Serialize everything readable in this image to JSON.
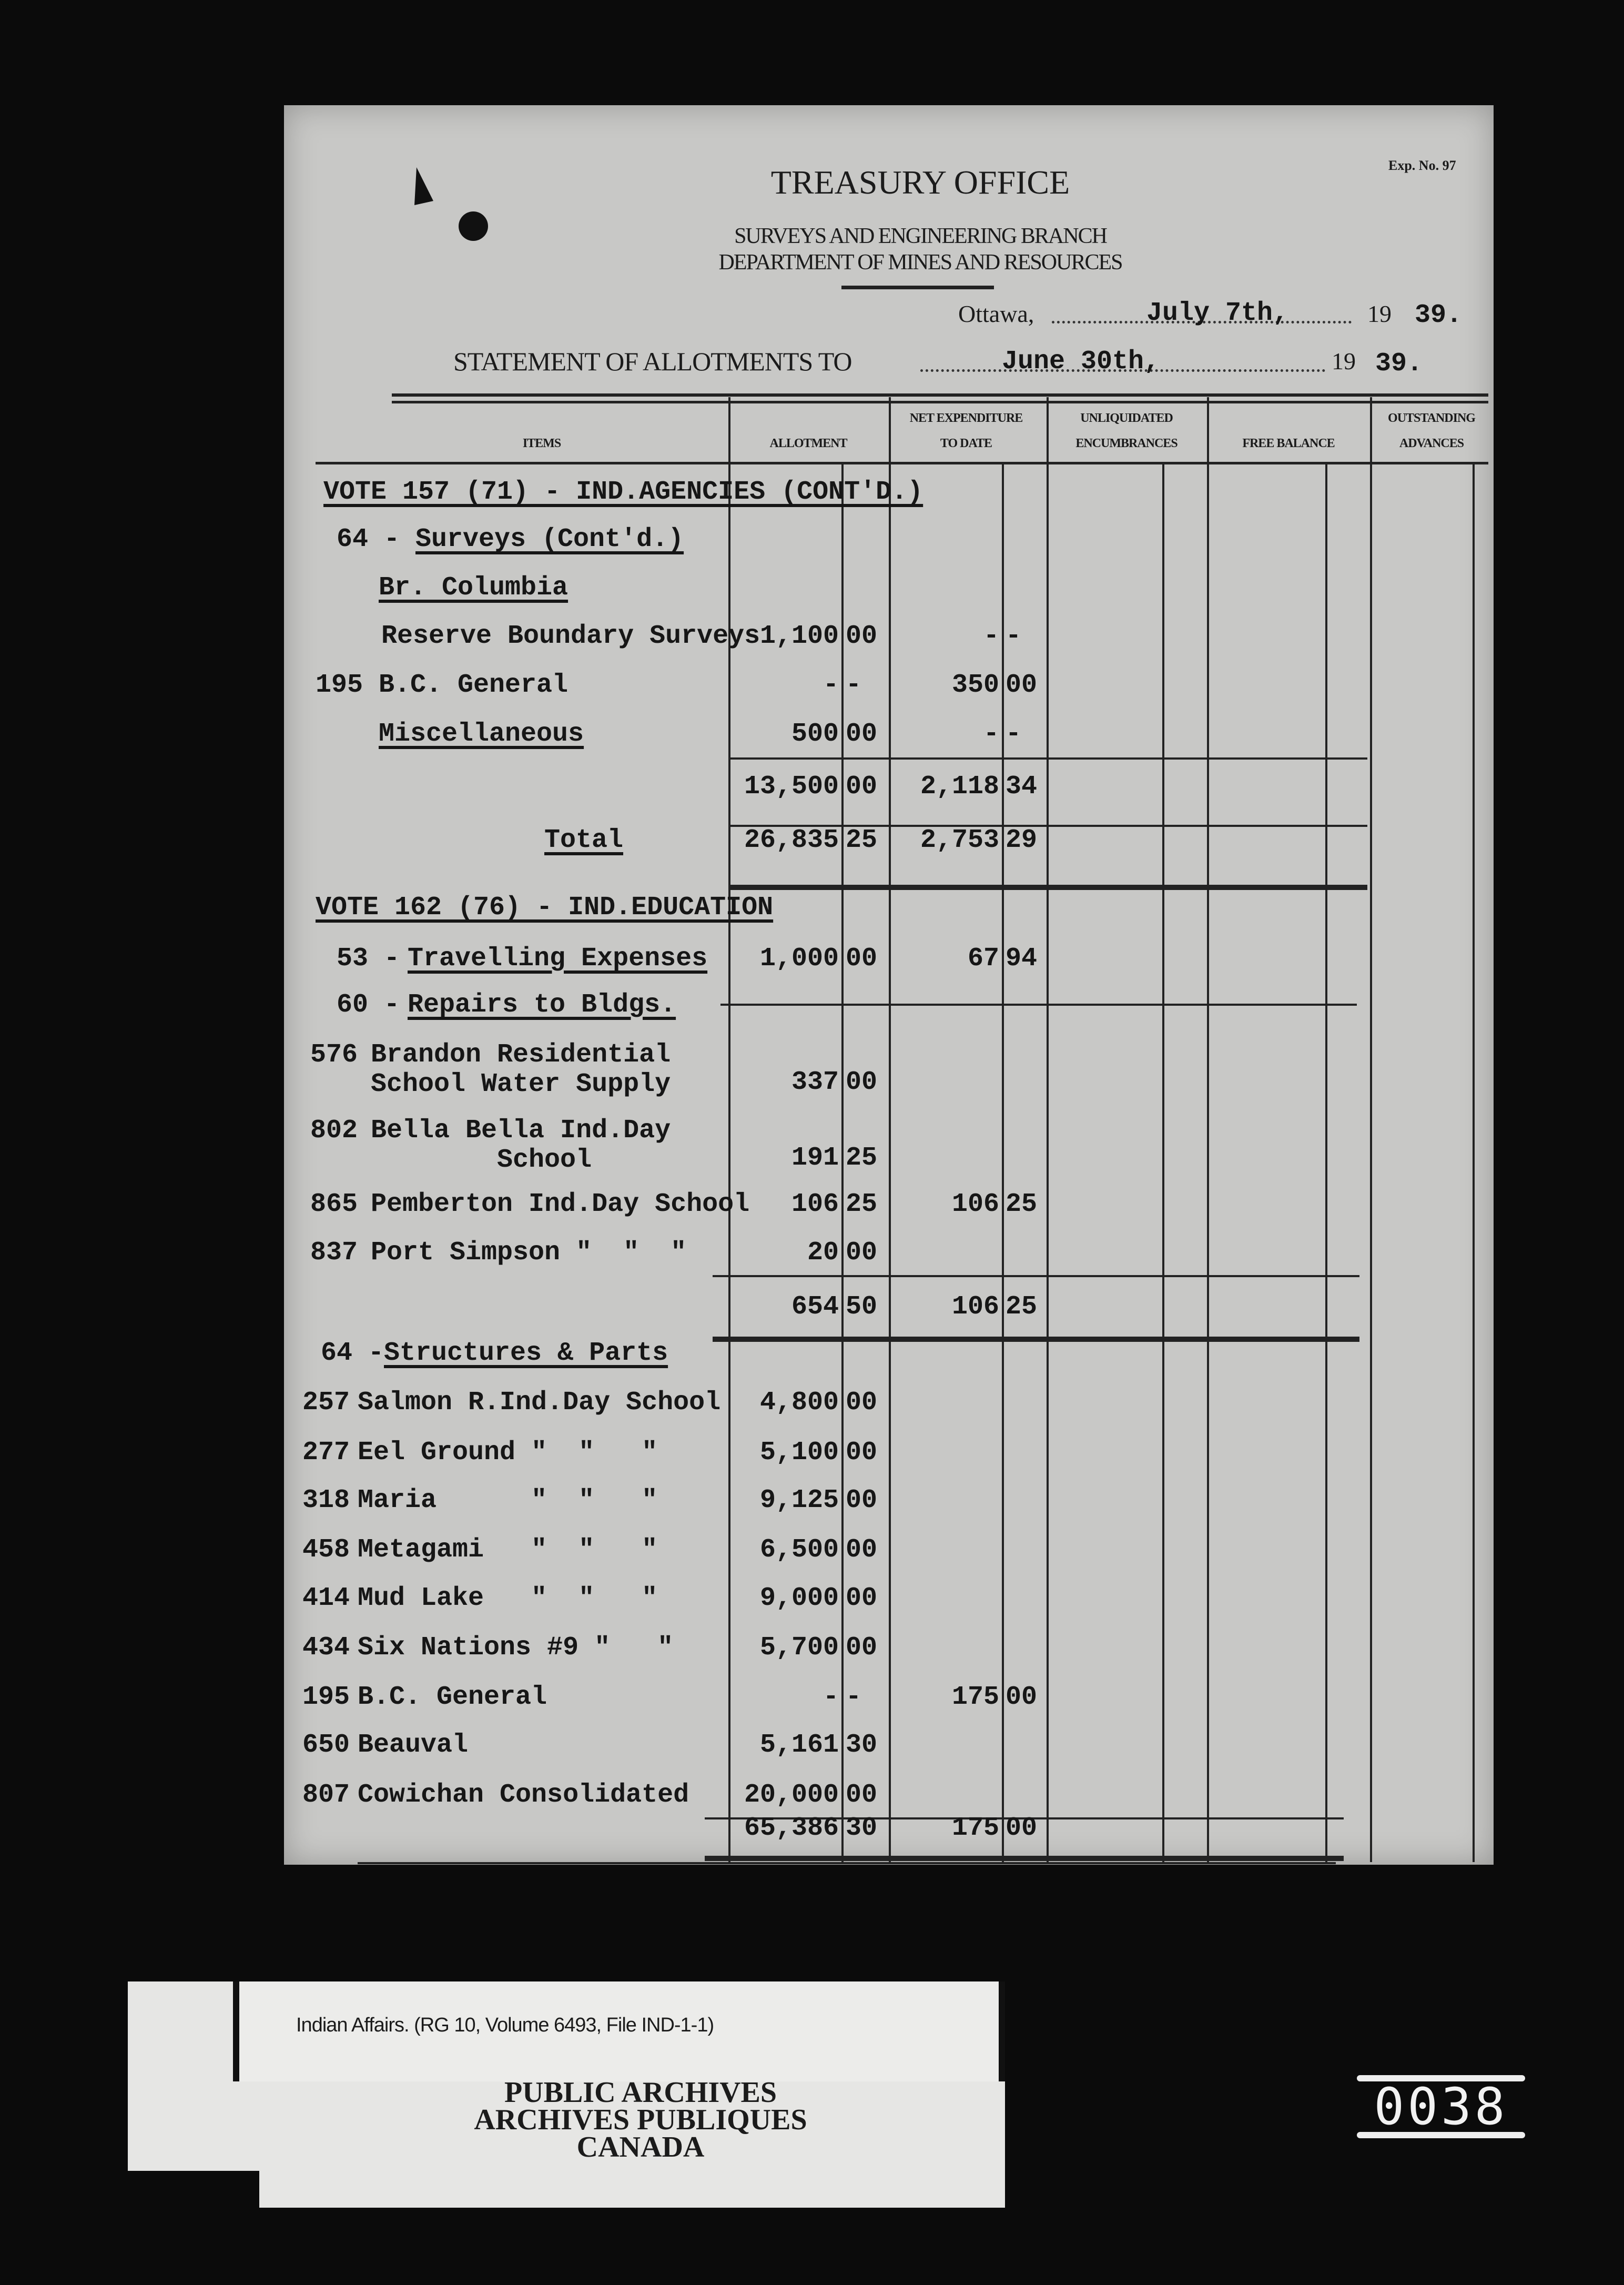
{
  "header": {
    "title": "TREASURY OFFICE",
    "branch": "SURVEYS AND ENGINEERING BRANCH",
    "department": "DEPARTMENT OF MINES AND RESOURCES",
    "exp_no": "Exp. No. 97",
    "place_label": "Ottawa,",
    "date": "July 7th,",
    "year_prefix": "19",
    "year": "39.",
    "statement_label": "STATEMENT OF ALLOTMENTS TO",
    "statement_date": "June 30th,",
    "statement_year_prefix": "19",
    "statement_year": "39."
  },
  "columns": {
    "items": "ITEMS",
    "allotment": "ALLOTMENT",
    "net_expenditure_1": "NET EXPENDITURE",
    "net_expenditure_2": "TO DATE",
    "unliquidated_1": "UNLIQUIDATED",
    "unliquidated_2": "ENCUMBRANCES",
    "free_balance": "FREE BALANCE",
    "outstanding_1": "OUTSTANDING",
    "outstanding_2": "ADVANCES"
  },
  "rows": [
    {
      "num": "",
      "label": "VOTE 157 (71) - IND.AGENCIES (CONT'D.)",
      "underline": true
    },
    {
      "num": "64 -",
      "label": "Surveys (Cont'd.)",
      "underline": true
    },
    {
      "num": "",
      "label": "Br. Columbia",
      "underline": true
    },
    {
      "num": "",
      "label": "Reserve Boundary Surveys",
      "allot_d": "1,100",
      "allot_c": "00",
      "net_d": "-",
      "net_c": "-"
    },
    {
      "num": "195",
      "label": "B.C. General",
      "allot_d": "-",
      "allot_c": "-",
      "net_d": "350",
      "net_c": "00"
    },
    {
      "num": "",
      "label": "Miscellaneous",
      "underline": true,
      "allot_d": "500",
      "allot_c": "00",
      "net_d": "-",
      "net_c": "-"
    },
    {
      "num": "",
      "label": "",
      "allot_d": "13,500",
      "allot_c": "00",
      "net_d": "2,118",
      "net_c": "34"
    },
    {
      "num": "",
      "label": "Total",
      "underline": true,
      "allot_d": "26,835",
      "allot_c": "25",
      "net_d": "2,753",
      "net_c": "29"
    },
    {
      "num": "",
      "label": "VOTE 162 (76) - IND.EDUCATION",
      "underline": true
    },
    {
      "num": "53 -",
      "label": "Travelling Expenses",
      "underline": true,
      "allot_d": "1,000",
      "allot_c": "00",
      "net_d": "67",
      "net_c": "94"
    },
    {
      "num": "60 -",
      "label": "Repairs to Bldgs.",
      "underline": true
    },
    {
      "num": "576",
      "label": "Brandon Residential\nSchool Water Supply",
      "allot_d": "337",
      "allot_c": "00"
    },
    {
      "num": "802",
      "label": "Bella Bella Ind.Day\n        School",
      "allot_d": "191",
      "allot_c": "25"
    },
    {
      "num": "865",
      "label": "Pemberton Ind.Day School",
      "allot_d": "106",
      "allot_c": "25",
      "net_d": "106",
      "net_c": "25"
    },
    {
      "num": "837",
      "label": "Port Simpson \"  \"  \"",
      "allot_d": "20",
      "allot_c": "00"
    },
    {
      "num": "",
      "label": "",
      "allot_d": "654",
      "allot_c": "50",
      "net_d": "106",
      "net_c": "25"
    },
    {
      "num": "64 -",
      "label": "Structures & Parts",
      "underline": true
    },
    {
      "num": "257",
      "label": "Salmon R.Ind.Day School",
      "allot_d": "4,800",
      "allot_c": "00"
    },
    {
      "num": "277",
      "label": "Eel Ground \"  \"   \"",
      "allot_d": "5,100",
      "allot_c": "00"
    },
    {
      "num": "318",
      "label": "Maria      \"  \"   \"",
      "allot_d": "9,125",
      "allot_c": "00"
    },
    {
      "num": "458",
      "label": "Metagami   \"  \"   \"",
      "allot_d": "6,500",
      "allot_c": "00"
    },
    {
      "num": "414",
      "label": "Mud Lake   \"  \"   \"",
      "allot_d": "9,000",
      "allot_c": "00"
    },
    {
      "num": "434",
      "label": "Six Nations #9 \"   \"",
      "allot_d": "5,700",
      "allot_c": "00"
    },
    {
      "num": "195",
      "label": "B.C. General",
      "allot_d": "-",
      "allot_c": "-",
      "net_d": "175",
      "net_c": "00"
    },
    {
      "num": "650",
      "label": "Beauval",
      "allot_d": "5,161",
      "allot_c": "30"
    },
    {
      "num": "807",
      "label": "Cowichan Consolidated",
      "allot_d": "20,000",
      "allot_c": "00"
    },
    {
      "num": "",
      "label": "",
      "allot_d": "65,386",
      "allot_c": "30",
      "net_d": "175",
      "net_c": "00"
    }
  ],
  "archive_label": {
    "reference": "Indian Affairs. (RG 10, Volume 6493, File IND-1-1)",
    "line1": "PUBLIC ARCHIVES",
    "line2": "ARCHIVES PUBLIQUES",
    "line3": "CANADA"
  },
  "frame_number": "0038"
}
